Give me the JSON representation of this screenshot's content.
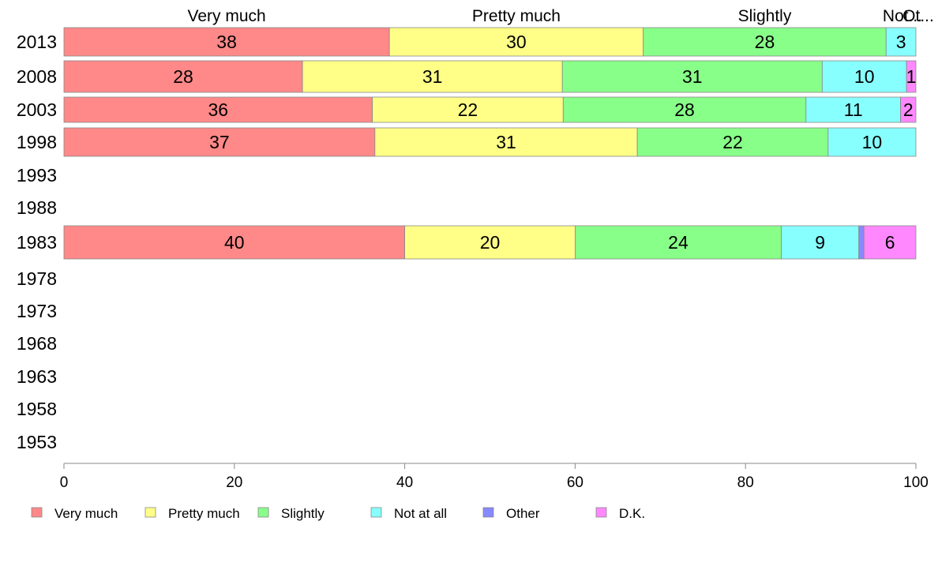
{
  "chart_data": {
    "type": "bar",
    "orientation": "horizontal",
    "stacked": true,
    "categories": [
      "2013",
      "2008",
      "2003",
      "1998",
      "1993",
      "1988",
      "1983",
      "1978",
      "1973",
      "1968",
      "1963",
      "1958",
      "1953"
    ],
    "series": [
      {
        "name": "Very much",
        "color": "#ff8888",
        "values": [
          38.2,
          28.0,
          36.2,
          36.5,
          null,
          null,
          40.0,
          null,
          null,
          null,
          null,
          null,
          null
        ],
        "labels": [
          "38",
          "28",
          "36",
          "37",
          "",
          "",
          "40",
          "",
          "",
          "",
          "",
          "",
          ""
        ]
      },
      {
        "name": "Pretty much",
        "color": "#ffff88",
        "values": [
          29.8,
          30.5,
          22.4,
          30.8,
          null,
          null,
          20.0,
          null,
          null,
          null,
          null,
          null,
          null
        ],
        "labels": [
          "30",
          "31",
          "22",
          "31",
          "",
          "",
          "20",
          "",
          "",
          "",
          "",
          "",
          ""
        ]
      },
      {
        "name": "Slightly",
        "color": "#88ff88",
        "values": [
          28.5,
          30.5,
          28.5,
          22.4,
          null,
          null,
          24.2,
          null,
          null,
          null,
          null,
          null,
          null
        ],
        "labels": [
          "28",
          "31",
          "28",
          "22",
          "",
          "",
          "24",
          "",
          "",
          "",
          "",
          "",
          ""
        ]
      },
      {
        "name": "Not at all",
        "color": "#88ffff",
        "values": [
          3.5,
          9.9,
          11.1,
          10.3,
          null,
          null,
          9.1,
          null,
          null,
          null,
          null,
          null,
          null
        ],
        "labels": [
          "3",
          "10",
          "11",
          "10",
          "",
          "",
          "9",
          "",
          "",
          "",
          "",
          "",
          ""
        ]
      },
      {
        "name": "Other",
        "color": "#8888ff",
        "values": [
          0,
          0,
          0,
          0,
          null,
          null,
          0.6,
          null,
          null,
          null,
          null,
          null,
          null
        ],
        "labels": [
          "",
          "",
          "",
          "",
          "",
          "",
          "",
          "",
          "",
          "",
          "",
          "",
          ""
        ]
      },
      {
        "name": "D.K.",
        "color": "#ff88ff",
        "values": [
          0,
          1.1,
          1.8,
          0,
          null,
          null,
          6.1,
          null,
          null,
          null,
          null,
          null,
          null
        ],
        "labels": [
          "",
          "1",
          "2",
          "",
          "",
          "",
          "6",
          "",
          "",
          "",
          "",
          "",
          ""
        ]
      }
    ],
    "top_labels": [
      "Very much",
      "Pretty much",
      "Slightly",
      "Not...",
      "Ot..."
    ],
    "xlim": [
      0,
      100
    ],
    "xticks": [
      "0",
      "20",
      "40",
      "60",
      "80",
      "100"
    ],
    "grid": false,
    "legend_position": "bottom-left"
  }
}
